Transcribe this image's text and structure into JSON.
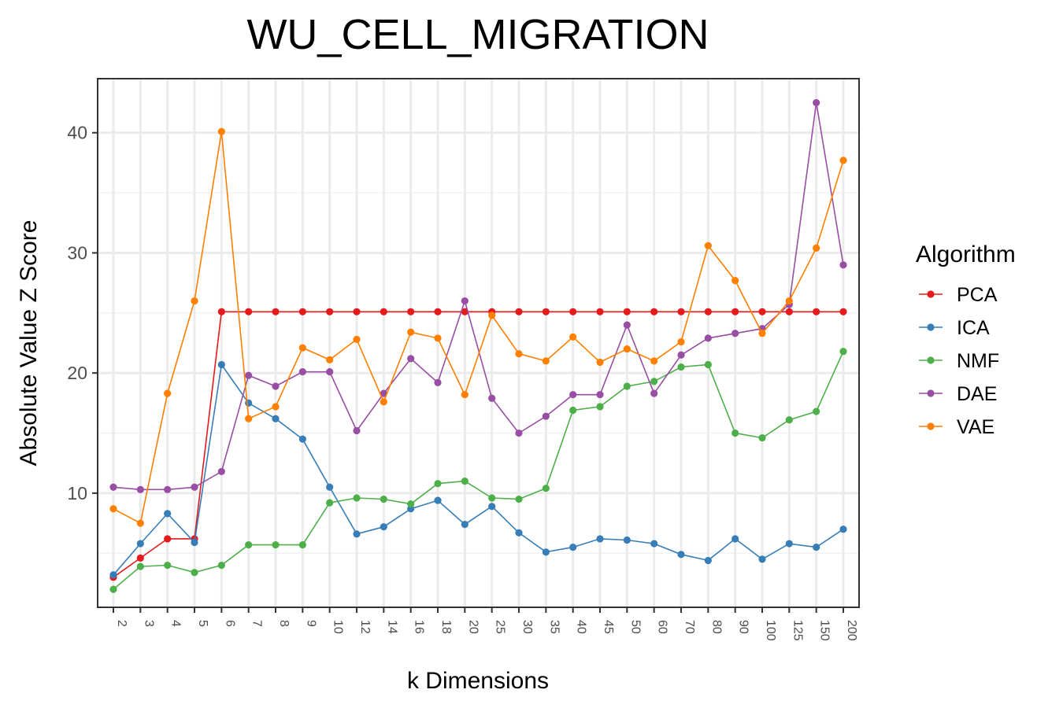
{
  "chart_data": {
    "type": "line",
    "title": "WU_CELL_MIGRATION",
    "xlabel": "k Dimensions",
    "ylabel": "Absolute Value Z Score",
    "categories": [
      "2",
      "3",
      "4",
      "5",
      "6",
      "7",
      "8",
      "9",
      "10",
      "12",
      "14",
      "16",
      "18",
      "20",
      "25",
      "30",
      "35",
      "40",
      "45",
      "50",
      "60",
      "70",
      "80",
      "90",
      "100",
      "125",
      "150",
      "200"
    ],
    "ylim": [
      0.5,
      44.5
    ],
    "yticks": [
      "10",
      "20",
      "30",
      "40"
    ],
    "grid": true,
    "legend": {
      "title": "Algorithm",
      "position": "right"
    },
    "series": [
      {
        "name": "PCA",
        "color": "#e41a1c",
        "values": [
          3.0,
          4.6,
          6.2,
          6.2,
          25.1,
          25.1,
          25.1,
          25.1,
          25.1,
          25.1,
          25.1,
          25.1,
          25.1,
          25.1,
          25.1,
          25.1,
          25.1,
          25.1,
          25.1,
          25.1,
          25.1,
          25.1,
          25.1,
          25.1,
          25.1,
          25.1,
          25.1,
          25.1
        ]
      },
      {
        "name": "ICA",
        "color": "#377eb8",
        "values": [
          3.2,
          5.8,
          8.3,
          5.9,
          20.7,
          17.5,
          16.2,
          14.5,
          10.5,
          6.6,
          7.2,
          8.7,
          9.4,
          7.4,
          8.9,
          6.7,
          5.1,
          5.5,
          6.2,
          6.1,
          5.8,
          4.9,
          4.4,
          6.2,
          4.5,
          5.8,
          5.5,
          7.0
        ]
      },
      {
        "name": "NMF",
        "color": "#4daf4a",
        "values": [
          2.0,
          3.9,
          4.0,
          3.4,
          4.0,
          5.7,
          5.7,
          5.7,
          9.2,
          9.6,
          9.5,
          9.1,
          10.8,
          11.0,
          9.6,
          9.5,
          10.4,
          16.9,
          17.2,
          18.9,
          19.3,
          20.5,
          20.7,
          15.0,
          14.6,
          16.1,
          16.8,
          21.8
        ]
      },
      {
        "name": "DAE",
        "color": "#984ea3",
        "values": [
          10.5,
          10.3,
          10.3,
          10.5,
          11.8,
          19.8,
          18.9,
          20.1,
          20.1,
          15.2,
          18.3,
          21.2,
          19.2,
          26.0,
          17.9,
          15.0,
          16.4,
          18.2,
          18.2,
          24.0,
          18.3,
          21.5,
          22.9,
          23.3,
          23.7,
          25.7,
          42.5,
          29.0
        ]
      },
      {
        "name": "VAE",
        "color": "#ff7f00",
        "values": [
          8.7,
          7.5,
          18.3,
          26.0,
          40.1,
          16.2,
          17.2,
          22.1,
          21.1,
          22.8,
          17.6,
          23.4,
          22.9,
          18.2,
          24.8,
          21.6,
          21.0,
          23.0,
          20.9,
          22.0,
          21.0,
          22.6,
          30.6,
          27.7,
          23.3,
          26.0,
          30.4,
          37.7
        ]
      }
    ]
  }
}
